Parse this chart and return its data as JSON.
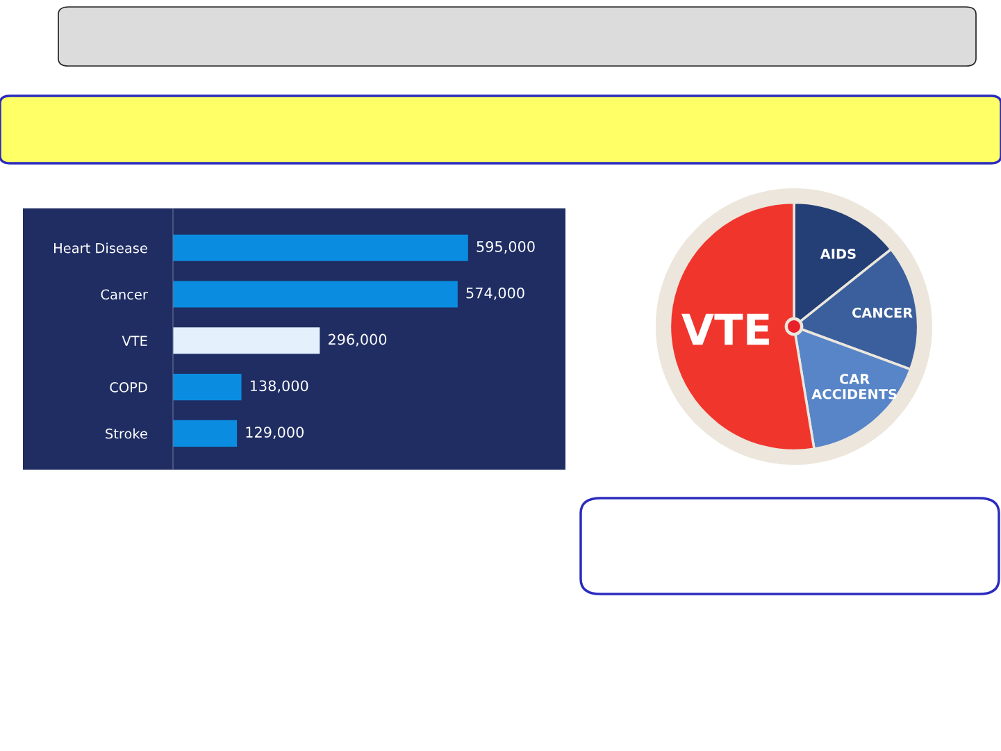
{
  "chart_data": [
    {
      "type": "bar",
      "orientation": "horizontal",
      "categories": [
        "Heart Disease",
        "Cancer",
        "VTE",
        "COPD",
        "Stroke"
      ],
      "values": [
        595000,
        574000,
        296000,
        138000,
        129000
      ],
      "colors": [
        "#0a8de0",
        "#0a8de0",
        "#e4f0fb",
        "#0a8de0",
        "#0a8de0"
      ],
      "value_labels": [
        "595,000",
        "574,000",
        "296,000",
        "138,000",
        "129,000"
      ]
    },
    {
      "type": "pie",
      "categories": [
        "AIDS",
        "CANCER",
        "CAR\nACCIDENTS",
        "VTE"
      ],
      "values": [
        14.3,
        16.3,
        16.8,
        52.6
      ],
      "colors": [
        "#233f75",
        "#3a5f9c",
        "#5785c8",
        "#f0352d"
      ]
    }
  ]
}
